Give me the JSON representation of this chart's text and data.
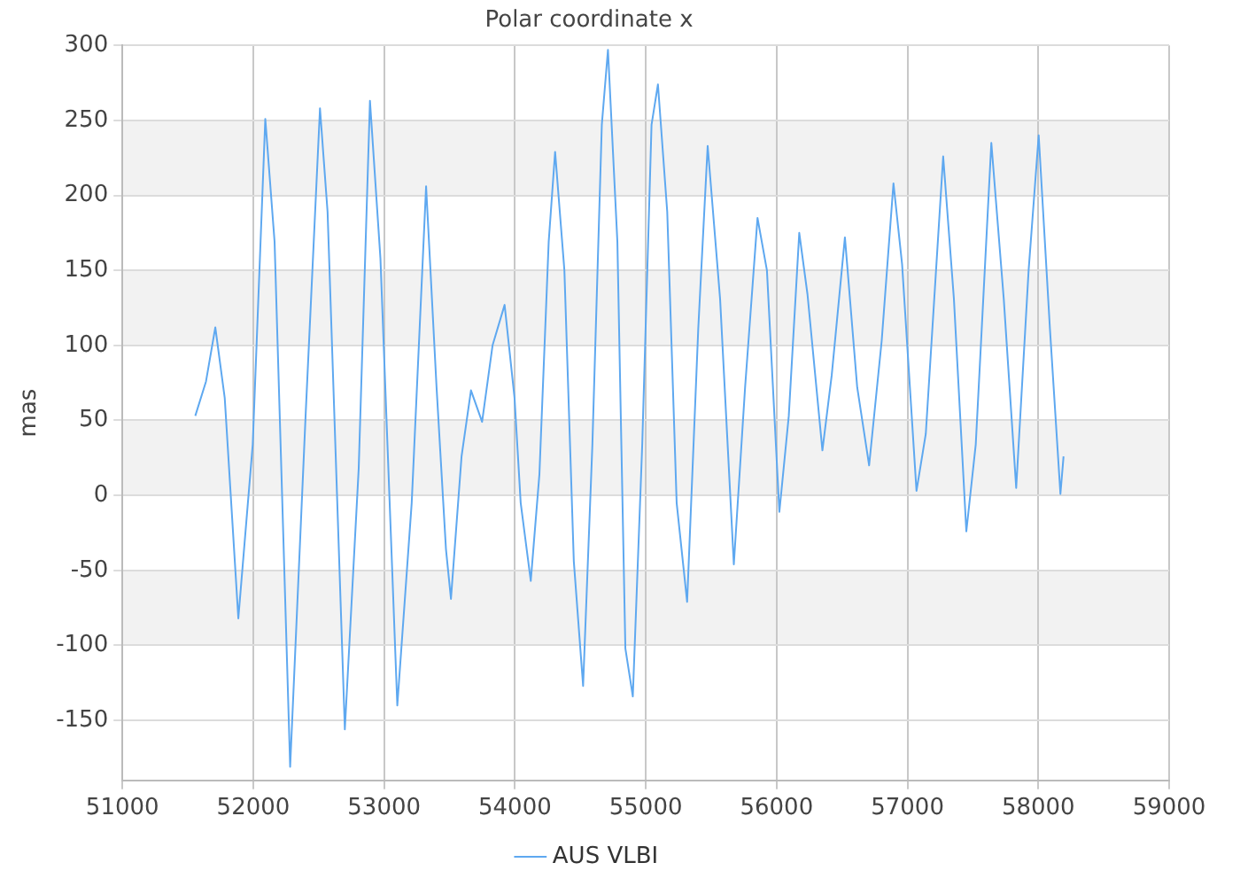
{
  "chart_data": {
    "type": "line",
    "title": "Polar coordinate x",
    "ylabel": "mas",
    "xlim": [
      51000,
      59000
    ],
    "xticks": [
      51000,
      52000,
      53000,
      54000,
      55000,
      56000,
      57000,
      58000,
      59000
    ],
    "ylim": [
      -190,
      300
    ],
    "yticks": [
      -150,
      -100,
      -50,
      0,
      50,
      100,
      150,
      200,
      250,
      300
    ],
    "grid": true,
    "legend": "bottom",
    "marker": "none",
    "line_style": "solid",
    "series": [
      {
        "name": "AUS VLBI",
        "color": "#5ea8f0",
        "x": [
          51557,
          51639,
          51710,
          51782,
          51886,
          51996,
          52092,
          52163,
          52282,
          52400,
          52510,
          52568,
          52700,
          52806,
          52892,
          52972,
          53101,
          53211,
          53321,
          53401,
          53473,
          53511,
          53592,
          53664,
          53749,
          53829,
          53921,
          53997,
          54044,
          54121,
          54187,
          54258,
          54307,
          54378,
          54450,
          54521,
          54592,
          54664,
          54711,
          54783,
          54844,
          54901,
          54973,
          55044,
          55093,
          55164,
          55236,
          55316,
          55401,
          55473,
          55568,
          55673,
          55759,
          55854,
          55926,
          56021,
          56093,
          56173,
          56236,
          56350,
          56421,
          56522,
          56616,
          56707,
          56803,
          56893,
          56959,
          57069,
          57140,
          57273,
          57355,
          57450,
          57522,
          57641,
          57736,
          57831,
          57926,
          58003,
          58089,
          58169,
          58193
        ],
        "values": [
          53,
          76,
          112,
          65,
          -82,
          34,
          251,
          169,
          -181,
          53,
          258,
          189,
          -156,
          18,
          263,
          158,
          -140,
          -5,
          206,
          72,
          -36,
          -69,
          26,
          70,
          49,
          100,
          127,
          65,
          -5,
          -57,
          14,
          169,
          229,
          150,
          -44,
          -127,
          34,
          247,
          297,
          169,
          -102,
          -134,
          34,
          247,
          274,
          189,
          -5,
          -71,
          111,
          233,
          131,
          -46,
          72,
          185,
          150,
          -11,
          53,
          175,
          134,
          30,
          80,
          172,
          72,
          20,
          103,
          208,
          154,
          3,
          41,
          226,
          131,
          -24,
          34,
          235,
          131,
          5,
          150,
          240,
          111,
          1,
          26
        ]
      }
    ]
  }
}
